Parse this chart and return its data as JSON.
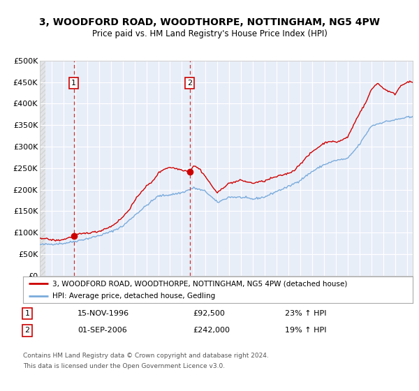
{
  "title": "3, WOODFORD ROAD, WOODTHORPE, NOTTINGHAM, NG5 4PW",
  "subtitle": "Price paid vs. HM Land Registry's House Price Index (HPI)",
  "legend_label_red": "3, WOODFORD ROAD, WOODTHORPE, NOTTINGHAM, NG5 4PW (detached house)",
  "legend_label_blue": "HPI: Average price, detached house, Gedling",
  "footer_line1": "Contains HM Land Registry data © Crown copyright and database right 2024.",
  "footer_line2": "This data is licensed under the Open Government Licence v3.0.",
  "sale1_date": "15-NOV-1996",
  "sale1_price": "£92,500",
  "sale1_hpi": "23% ↑ HPI",
  "sale2_date": "01-SEP-2006",
  "sale2_price": "£242,000",
  "sale2_hpi": "19% ↑ HPI",
  "vline1_x": 1996.875,
  "vline2_x": 2006.667,
  "sale1_dot_x": 1996.875,
  "sale1_dot_y": 92500,
  "sale2_dot_x": 2006.667,
  "sale2_dot_y": 242000,
  "xmin": 1994.0,
  "xmax": 2025.5,
  "ymin": 0,
  "ymax": 500000,
  "yticks": [
    0,
    50000,
    100000,
    150000,
    200000,
    250000,
    300000,
    350000,
    400000,
    450000,
    500000
  ],
  "ytick_labels": [
    "£0",
    "£50K",
    "£100K",
    "£150K",
    "£200K",
    "£250K",
    "£300K",
    "£350K",
    "£400K",
    "£450K",
    "£500K"
  ],
  "xticks": [
    1994,
    1995,
    1996,
    1997,
    1998,
    1999,
    2000,
    2001,
    2002,
    2003,
    2004,
    2005,
    2006,
    2007,
    2008,
    2009,
    2010,
    2011,
    2012,
    2013,
    2014,
    2015,
    2016,
    2017,
    2018,
    2019,
    2020,
    2021,
    2022,
    2023,
    2024,
    2025
  ],
  "background_color": "#ffffff",
  "plot_bg_color": "#e8eef8",
  "grid_color": "#ffffff",
  "red_color": "#cc0000",
  "blue_color": "#7aabdc",
  "vline_color": "#cc3333",
  "marker_color": "#cc0000",
  "box_border_color": "#cc0000",
  "hatch_color": "#cccccc"
}
